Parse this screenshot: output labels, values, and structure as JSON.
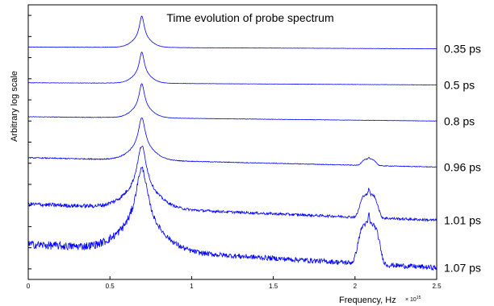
{
  "chart_data": {
    "type": "line",
    "title": "Time evolution of probe spectrum",
    "xlabel": "Frequency, Hz",
    "x_exponent_label": "× 10",
    "x_exponent_power": "15",
    "ylabel": "Arbitrary log scale",
    "xlim": [
      0,
      2.5
    ],
    "ylim": [
      0,
      6.5
    ],
    "x_ticks": [
      0,
      0.5,
      1,
      1.5,
      2,
      2.5
    ],
    "x_tick_labels": [
      "0",
      "0.5",
      "1",
      "1.5",
      "2",
      "2.5"
    ],
    "y_tick_count": 13,
    "grid": false,
    "line_color": "#0000ff",
    "series": [
      {
        "label": "0.35 ps",
        "baseline": 5.48,
        "slope": 0.04,
        "peak_height": 0.55,
        "peak_width": 0.018,
        "peak2_height": 0.0,
        "noise": 0.003
      },
      {
        "label": "0.5 ps",
        "baseline": 4.63,
        "slope": 0.05,
        "peak_height": 0.55,
        "peak_width": 0.018,
        "peak2_height": 0.0,
        "noise": 0.003
      },
      {
        "label": "0.8 ps",
        "baseline": 3.8,
        "slope": 0.1,
        "peak_height": 0.6,
        "peak_width": 0.02,
        "peak2_height": 0.0,
        "noise": 0.004
      },
      {
        "label": "0.96 ps",
        "baseline": 2.77,
        "slope": 0.22,
        "peak_height": 0.75,
        "peak_width": 0.025,
        "peak2_height": 0.15,
        "noise": 0.008
      },
      {
        "label": "1.01 ps",
        "baseline": 1.59,
        "slope": 0.38,
        "peak_height": 1.1,
        "peak_width": 0.035,
        "peak2_height": 0.55,
        "noise": 0.03
      },
      {
        "label": "1.07 ps",
        "baseline": 0.55,
        "slope": 0.55,
        "peak_height": 1.45,
        "peak_width": 0.045,
        "peak2_height": 0.95,
        "noise": 0.06
      }
    ]
  }
}
